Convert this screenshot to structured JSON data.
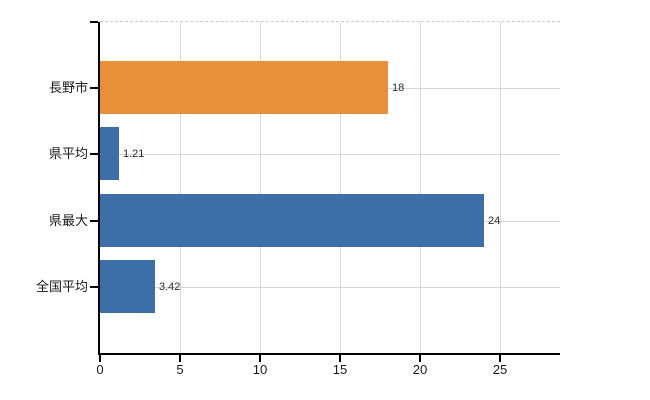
{
  "chart_data": {
    "type": "bar",
    "orientation": "horizontal",
    "title": "",
    "categories": [
      "長野市",
      "県平均",
      "県最大",
      "全国平均"
    ],
    "values": [
      18,
      1.21,
      24,
      3.42
    ],
    "value_labels": [
      "18",
      "1.21",
      "24",
      "3.42"
    ],
    "bar_colors": [
      "#E8913A",
      "#3D6EA8",
      "#3D6EA8",
      "#3D6EA8"
    ],
    "x_ticks": [
      "0",
      "5",
      "10",
      "15",
      "20",
      "25"
    ],
    "x_tick_values": [
      0,
      5,
      10,
      15,
      20,
      25
    ],
    "xlim": [
      0,
      28.75
    ],
    "grid": true,
    "legend_position": "none"
  },
  "colors": {
    "background": "#FFFFFF",
    "axis": "#000000",
    "gridline": "#D6D6D6",
    "plot_top_border": "#C9C9C9",
    "category_text": "#1A1A1A",
    "value_text": "#2B2B2B"
  }
}
